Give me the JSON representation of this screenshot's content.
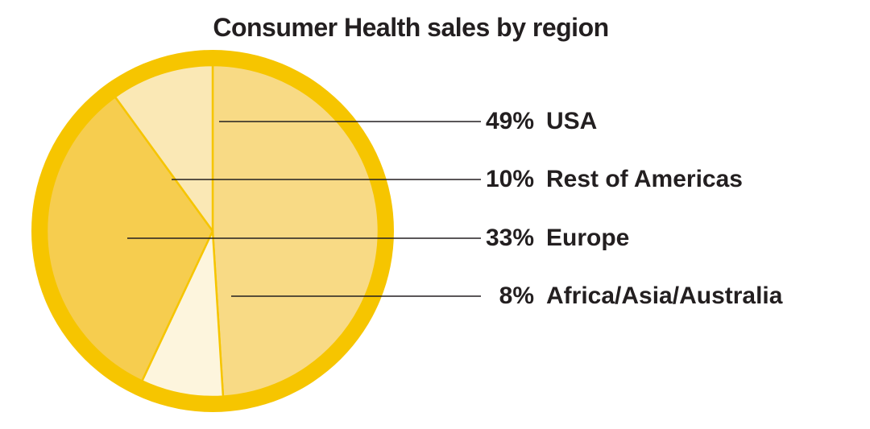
{
  "title": "Consumer Health sales by region",
  "colors": {
    "background": "#ffffff",
    "ring": "#F6C500",
    "slice_border": "#F6C500",
    "leader_line": "#231f20",
    "text": "#231f20"
  },
  "chart_data": {
    "type": "pie",
    "title": "Consumer Health sales by region",
    "unit": "%",
    "start_angle_deg": 0,
    "clockwise": true,
    "slices": [
      {
        "label": "USA",
        "value": 49,
        "percent_label": "49%",
        "color": "#F8DA85"
      },
      {
        "label": "Rest of Americas",
        "value": 10,
        "percent_label": "10%",
        "color": "#FAE8B5"
      },
      {
        "label": "Europe",
        "value": 33,
        "percent_label": "33%",
        "color": "#F6CD4F"
      },
      {
        "label": "Africa/Asia/Australia",
        "value": 8,
        "percent_label": "8%",
        "color": "#FDF5DD"
      }
    ],
    "pie_draw_order": [
      0,
      3,
      2,
      1
    ],
    "legend_position": "right",
    "legend_order": [
      "USA",
      "Rest of Americas",
      "Europe",
      "Africa/Asia/Australia"
    ]
  }
}
